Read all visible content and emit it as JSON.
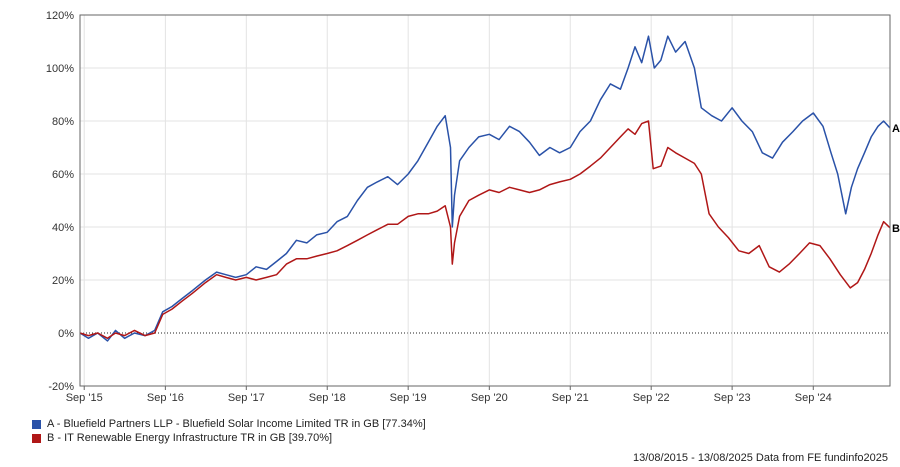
{
  "chart_data": {
    "type": "line",
    "title": "",
    "xlabel": "",
    "ylabel": "",
    "y_ticks": [
      -20,
      0,
      20,
      40,
      60,
      80,
      100,
      120
    ],
    "y_tick_labels": [
      "-20%",
      "0%",
      "20%",
      "40%",
      "60%",
      "80%",
      "100%",
      "120%"
    ],
    "ylim": [
      -20,
      120
    ],
    "xlim": [
      "2015-08-13",
      "2025-08-13"
    ],
    "x_ticks": [
      {
        "date": "2015-09-01",
        "label": "Sep '15"
      },
      {
        "date": "2016-09-01",
        "label": "Sep '16"
      },
      {
        "date": "2017-09-01",
        "label": "Sep '17"
      },
      {
        "date": "2018-09-01",
        "label": "Sep '18"
      },
      {
        "date": "2019-09-01",
        "label": "Sep '19"
      },
      {
        "date": "2020-09-01",
        "label": "Sep '20"
      },
      {
        "date": "2021-09-01",
        "label": "Sep '21"
      },
      {
        "date": "2022-09-01",
        "label": "Sep '22"
      },
      {
        "date": "2023-09-01",
        "label": "Sep '23"
      },
      {
        "date": "2024-09-01",
        "label": "Sep '24"
      }
    ],
    "vertical_grid": true,
    "horizontal_grid": true,
    "zero_line": "dotted",
    "legend_position": "bottom-left",
    "series": [
      {
        "name": "A - Bluefield Partners LLP - Bluefield Solar Income Limited TR in GB [77.34%]",
        "end_label": "A",
        "color": "#2a52a8",
        "points": [
          [
            "2015-08-13",
            0
          ],
          [
            "2015-09-20",
            -2
          ],
          [
            "2015-11-01",
            0
          ],
          [
            "2015-12-15",
            -3
          ],
          [
            "2016-01-20",
            1
          ],
          [
            "2016-03-01",
            -2
          ],
          [
            "2016-04-15",
            0
          ],
          [
            "2016-06-01",
            -1
          ],
          [
            "2016-07-15",
            1
          ],
          [
            "2016-08-20",
            8
          ],
          [
            "2016-10-01",
            10
          ],
          [
            "2016-11-15",
            13
          ],
          [
            "2017-01-01",
            16
          ],
          [
            "2017-03-01",
            20
          ],
          [
            "2017-04-20",
            23
          ],
          [
            "2017-06-01",
            22
          ],
          [
            "2017-07-15",
            21
          ],
          [
            "2017-09-01",
            22
          ],
          [
            "2017-10-15",
            25
          ],
          [
            "2017-12-01",
            24
          ],
          [
            "2018-01-15",
            27
          ],
          [
            "2018-03-01",
            30
          ],
          [
            "2018-04-15",
            35
          ],
          [
            "2018-06-01",
            34
          ],
          [
            "2018-07-15",
            37
          ],
          [
            "2018-09-01",
            38
          ],
          [
            "2018-10-15",
            42
          ],
          [
            "2018-12-01",
            44
          ],
          [
            "2019-01-15",
            50
          ],
          [
            "2019-03-01",
            55
          ],
          [
            "2019-04-15",
            57
          ],
          [
            "2019-06-01",
            59
          ],
          [
            "2019-07-15",
            56
          ],
          [
            "2019-09-01",
            60
          ],
          [
            "2019-10-15",
            65
          ],
          [
            "2019-12-01",
            72
          ],
          [
            "2020-01-10",
            78
          ],
          [
            "2020-02-15",
            82
          ],
          [
            "2020-03-10",
            70
          ],
          [
            "2020-03-18",
            40
          ],
          [
            "2020-03-28",
            52
          ],
          [
            "2020-04-20",
            65
          ],
          [
            "2020-06-01",
            70
          ],
          [
            "2020-07-15",
            74
          ],
          [
            "2020-09-01",
            75
          ],
          [
            "2020-10-15",
            73
          ],
          [
            "2020-12-01",
            78
          ],
          [
            "2021-01-15",
            76
          ],
          [
            "2021-03-01",
            72
          ],
          [
            "2021-04-15",
            67
          ],
          [
            "2021-06-01",
            70
          ],
          [
            "2021-07-15",
            68
          ],
          [
            "2021-09-01",
            70
          ],
          [
            "2021-10-15",
            76
          ],
          [
            "2021-12-01",
            80
          ],
          [
            "2022-01-15",
            88
          ],
          [
            "2022-03-01",
            94
          ],
          [
            "2022-04-15",
            92
          ],
          [
            "2022-05-20",
            100
          ],
          [
            "2022-06-20",
            108
          ],
          [
            "2022-07-20",
            102
          ],
          [
            "2022-08-20",
            112
          ],
          [
            "2022-09-15",
            100
          ],
          [
            "2022-10-15",
            103
          ],
          [
            "2022-11-15",
            112
          ],
          [
            "2022-12-20",
            106
          ],
          [
            "2023-02-01",
            110
          ],
          [
            "2023-03-15",
            100
          ],
          [
            "2023-04-15",
            85
          ],
          [
            "2023-06-01",
            82
          ],
          [
            "2023-07-15",
            80
          ],
          [
            "2023-09-01",
            85
          ],
          [
            "2023-10-15",
            80
          ],
          [
            "2023-12-01",
            76
          ],
          [
            "2024-01-15",
            68
          ],
          [
            "2024-03-01",
            66
          ],
          [
            "2024-04-15",
            72
          ],
          [
            "2024-06-01",
            76
          ],
          [
            "2024-07-15",
            80
          ],
          [
            "2024-09-01",
            83
          ],
          [
            "2024-10-15",
            78
          ],
          [
            "2024-11-20",
            68
          ],
          [
            "2024-12-20",
            60
          ],
          [
            "2025-01-25",
            45
          ],
          [
            "2025-02-20",
            55
          ],
          [
            "2025-03-20",
            62
          ],
          [
            "2025-04-20",
            68
          ],
          [
            "2025-05-20",
            74
          ],
          [
            "2025-06-20",
            78
          ],
          [
            "2025-07-15",
            80
          ],
          [
            "2025-08-13",
            77.34
          ]
        ]
      },
      {
        "name": "B - IT Renewable Energy Infrastructure TR in GB [39.70%]",
        "end_label": "B",
        "color": "#b01717",
        "points": [
          [
            "2015-08-13",
            0
          ],
          [
            "2015-09-20",
            -1
          ],
          [
            "2015-11-01",
            0
          ],
          [
            "2015-12-15",
            -2
          ],
          [
            "2016-01-20",
            0
          ],
          [
            "2016-03-01",
            -1
          ],
          [
            "2016-04-15",
            1
          ],
          [
            "2016-06-01",
            -1
          ],
          [
            "2016-07-15",
            0
          ],
          [
            "2016-08-20",
            7
          ],
          [
            "2016-10-01",
            9
          ],
          [
            "2016-11-15",
            12
          ],
          [
            "2017-01-01",
            15
          ],
          [
            "2017-03-01",
            19
          ],
          [
            "2017-04-20",
            22
          ],
          [
            "2017-06-01",
            21
          ],
          [
            "2017-07-15",
            20
          ],
          [
            "2017-09-01",
            21
          ],
          [
            "2017-10-15",
            20
          ],
          [
            "2017-12-01",
            21
          ],
          [
            "2018-01-15",
            22
          ],
          [
            "2018-03-01",
            26
          ],
          [
            "2018-04-15",
            28
          ],
          [
            "2018-06-01",
            28
          ],
          [
            "2018-07-15",
            29
          ],
          [
            "2018-09-01",
            30
          ],
          [
            "2018-10-15",
            31
          ],
          [
            "2018-12-01",
            33
          ],
          [
            "2019-01-15",
            35
          ],
          [
            "2019-03-01",
            37
          ],
          [
            "2019-04-15",
            39
          ],
          [
            "2019-06-01",
            41
          ],
          [
            "2019-07-15",
            41
          ],
          [
            "2019-09-01",
            44
          ],
          [
            "2019-10-15",
            45
          ],
          [
            "2019-12-01",
            45
          ],
          [
            "2020-01-10",
            46
          ],
          [
            "2020-02-15",
            48
          ],
          [
            "2020-03-10",
            40
          ],
          [
            "2020-03-18",
            26
          ],
          [
            "2020-03-28",
            34
          ],
          [
            "2020-04-20",
            44
          ],
          [
            "2020-06-01",
            50
          ],
          [
            "2020-07-15",
            52
          ],
          [
            "2020-09-01",
            54
          ],
          [
            "2020-10-15",
            53
          ],
          [
            "2020-12-01",
            55
          ],
          [
            "2021-01-15",
            54
          ],
          [
            "2021-03-01",
            53
          ],
          [
            "2021-04-15",
            54
          ],
          [
            "2021-06-01",
            56
          ],
          [
            "2021-07-15",
            57
          ],
          [
            "2021-09-01",
            58
          ],
          [
            "2021-10-15",
            60
          ],
          [
            "2021-12-01",
            63
          ],
          [
            "2022-01-15",
            66
          ],
          [
            "2022-03-01",
            70
          ],
          [
            "2022-04-15",
            74
          ],
          [
            "2022-05-20",
            77
          ],
          [
            "2022-06-20",
            75
          ],
          [
            "2022-07-20",
            79
          ],
          [
            "2022-08-20",
            80
          ],
          [
            "2022-09-10",
            62
          ],
          [
            "2022-10-15",
            63
          ],
          [
            "2022-11-15",
            70
          ],
          [
            "2022-12-20",
            68
          ],
          [
            "2023-02-01",
            66
          ],
          [
            "2023-03-15",
            64
          ],
          [
            "2023-04-15",
            60
          ],
          [
            "2023-05-20",
            45
          ],
          [
            "2023-07-01",
            40
          ],
          [
            "2023-08-15",
            36
          ],
          [
            "2023-10-01",
            31
          ],
          [
            "2023-11-15",
            30
          ],
          [
            "2024-01-01",
            33
          ],
          [
            "2024-02-15",
            25
          ],
          [
            "2024-04-01",
            23
          ],
          [
            "2024-05-15",
            26
          ],
          [
            "2024-07-01",
            30
          ],
          [
            "2024-08-15",
            34
          ],
          [
            "2024-10-01",
            33
          ],
          [
            "2024-11-15",
            28
          ],
          [
            "2025-01-01",
            22
          ],
          [
            "2025-02-15",
            17
          ],
          [
            "2025-03-20",
            19
          ],
          [
            "2025-04-20",
            24
          ],
          [
            "2025-05-20",
            30
          ],
          [
            "2025-06-20",
            37
          ],
          [
            "2025-07-15",
            42
          ],
          [
            "2025-08-13",
            39.7
          ]
        ]
      }
    ]
  },
  "footer": {
    "range": "13/08/2015 - 13/08/2025 Data from FE fundinfo2025"
  }
}
